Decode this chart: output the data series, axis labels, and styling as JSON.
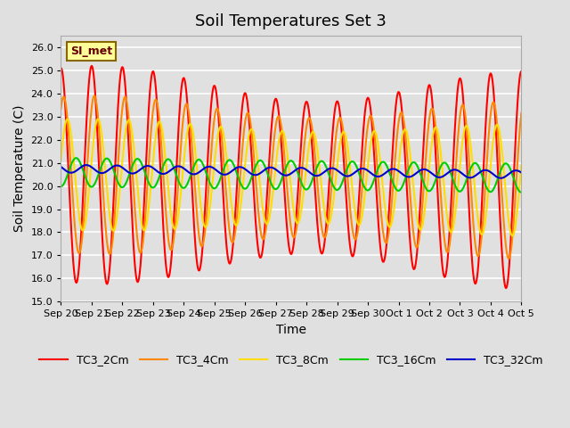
{
  "title": "Soil Temperatures Set 3",
  "xlabel": "Time",
  "ylabel": "Soil Temperature (C)",
  "ylim": [
    15.0,
    26.5
  ],
  "yticks": [
    15.0,
    16.0,
    17.0,
    18.0,
    19.0,
    20.0,
    21.0,
    22.0,
    23.0,
    24.0,
    25.0,
    26.0
  ],
  "series_labels": [
    "TC3_2Cm",
    "TC3_4Cm",
    "TC3_8Cm",
    "TC3_16Cm",
    "TC3_32Cm"
  ],
  "series_colors": [
    "#ff0000",
    "#ff8800",
    "#ffdd00",
    "#00cc00",
    "#0000cc"
  ],
  "annotation_text": "SI_met",
  "annotation_box_color": "#ffff99",
  "annotation_border_color": "#886600",
  "bg_color": "#e0e0e0",
  "plot_bg_color": "#e0e0e0",
  "grid_color": "#ffffff",
  "xtick_labels": [
    "Sep 20",
    "Sep 21",
    "Sep 22",
    "Sep 23",
    "Sep 24",
    "Sep 25",
    "Sep 26",
    "Sep 27",
    "Sep 28",
    "Sep 29",
    "Sep 30",
    "Oct 1",
    "Oct 2",
    "Oct 3",
    "Oct 4",
    "Oct 5"
  ],
  "n_days": 15,
  "pts_per_day": 48,
  "mean_temp": 20.5,
  "linewidth": 1.5,
  "legend_ncol": 5,
  "title_fontsize": 13,
  "axis_label_fontsize": 10
}
